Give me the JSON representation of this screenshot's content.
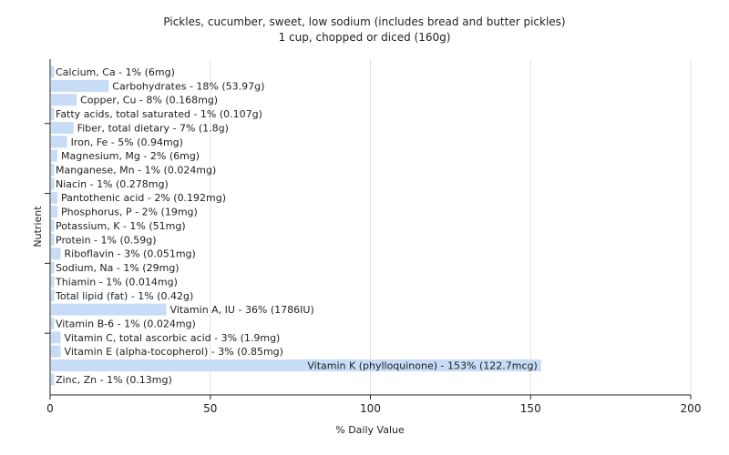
{
  "chart_data": {
    "type": "bar",
    "orientation": "horizontal",
    "title": "Pickles, cucumber, sweet, low sodium (includes bread and butter pickles)",
    "subtitle": "1 cup, chopped or diced (160g)",
    "xlabel": "% Daily Value",
    "ylabel": "Nutrient",
    "xlim": [
      0,
      200
    ],
    "xticks": [
      0,
      50,
      100,
      150,
      200
    ],
    "grid": true,
    "bar_color": "#c6dcf7",
    "categories": [
      "Calcium, Ca",
      "Carbohydrates",
      "Copper, Cu",
      "Fatty acids, total saturated",
      "Fiber, total dietary",
      "Iron, Fe",
      "Magnesium, Mg",
      "Manganese, Mn",
      "Niacin",
      "Pantothenic acid",
      "Phosphorus, P",
      "Potassium, K",
      "Protein",
      "Riboflavin",
      "Sodium, Na",
      "Thiamin",
      "Total lipid (fat)",
      "Vitamin A, IU",
      "Vitamin B-6",
      "Vitamin C, total ascorbic acid",
      "Vitamin E (alpha-tocopherol)",
      "Vitamin K (phylloquinone)",
      "Zinc, Zn"
    ],
    "values": [
      1,
      18,
      8,
      1,
      7,
      5,
      2,
      1,
      1,
      2,
      2,
      1,
      1,
      3,
      1,
      1,
      1,
      36,
      1,
      3,
      3,
      153,
      1
    ],
    "labels": [
      "Calcium, Ca - 1% (6mg)",
      "Carbohydrates - 18% (53.97g)",
      "Copper, Cu - 8% (0.168mg)",
      "Fatty acids, total saturated - 1% (0.107g)",
      "Fiber, total dietary - 7% (1.8g)",
      "Iron, Fe - 5% (0.94mg)",
      "Magnesium, Mg - 2% (6mg)",
      "Manganese, Mn - 1% (0.024mg)",
      "Niacin - 1% (0.278mg)",
      "Pantothenic acid - 2% (0.192mg)",
      "Phosphorus, P - 2% (19mg)",
      "Potassium, K - 1% (51mg)",
      "Protein - 1% (0.59g)",
      "Riboflavin - 3% (0.051mg)",
      "Sodium, Na - 1% (29mg)",
      "Thiamin - 1% (0.014mg)",
      "Total lipid (fat) - 1% (0.42g)",
      "Vitamin A, IU - 36% (1786IU)",
      "Vitamin B-6 - 1% (0.024mg)",
      "Vitamin C, total ascorbic acid - 3% (1.9mg)",
      "Vitamin E (alpha-tocopherol) - 3% (0.85mg)",
      "Vitamin K (phylloquinone) - 153% (122.7mcg)",
      "Zinc, Zn - 1% (0.13mg)"
    ]
  }
}
